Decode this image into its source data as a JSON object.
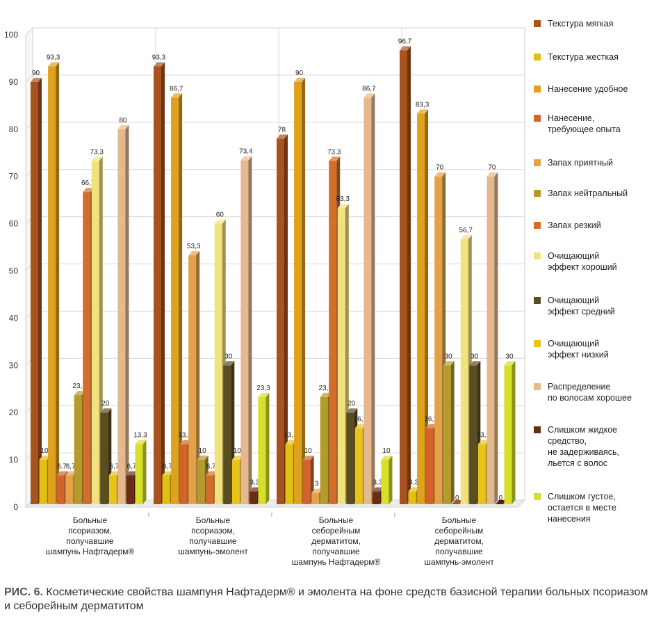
{
  "chart_data": {
    "type": "bar",
    "categories": [
      "Больные\nпсориазом,\nполучавшие\nшампунь Нафтадерм®",
      "Больные\nпсориазом,\nполучавшие\nшампунь-эмолент",
      "Больные\nсеборейным\nдерматитом,\nполучавшие\nшампунь Нафтадерм®",
      "Больные\nсеборейным\nдерматитом,\nполучавшие\nшампунь-эмолент"
    ],
    "series": [
      {
        "name": "Текстура мягкая",
        "color": "#a8521f",
        "values": [
          90,
          93.3,
          78,
          96.7
        ],
        "labels": [
          "90",
          "93,3",
          "78",
          "96,7"
        ]
      },
      {
        "name": "Текстура жесткая",
        "color": "#e3bf12",
        "values": [
          10,
          6.7,
          13.3,
          3.3
        ],
        "labels": [
          "10",
          "6,7",
          "13,3",
          "3,3"
        ]
      },
      {
        "name": "Нанесение удобное",
        "color": "#e0a21d",
        "values": [
          93.3,
          86.7,
          90,
          83.3
        ],
        "labels": [
          "93,3",
          "86,7",
          "90",
          "83,3"
        ]
      },
      {
        "name": "Нанесение,\nтребующее опыта",
        "color": "#d2632a",
        "values": [
          6.7,
          13.3,
          10,
          16.7
        ],
        "labels": [
          "6,7",
          "13,3",
          "10",
          "16,7"
        ]
      },
      {
        "name": "Запах приятный",
        "color": "#e4a248",
        "values": [
          6.7,
          53.3,
          3,
          70
        ],
        "labels": [
          "6,7",
          "53,3",
          "3",
          "70"
        ]
      },
      {
        "name": "Запах нейтральный",
        "color": "#b59a2c",
        "values": [
          23.7,
          10,
          23.3,
          30
        ],
        "labels": [
          "23,7",
          "10",
          "23,3",
          "30"
        ]
      },
      {
        "name": "Запах резкий",
        "color": "#d26e2a",
        "values": [
          66.7,
          6.7,
          73.3,
          0
        ],
        "labels": [
          "66,7",
          "6,7",
          "73,3",
          "0"
        ]
      },
      {
        "name": "Очищающий\nэффект хороший",
        "color": "#f2e27c",
        "values": [
          73.3,
          60,
          63.3,
          56.7
        ],
        "labels": [
          "73,3",
          "60",
          "63,3",
          "56,7"
        ]
      },
      {
        "name": "Очищающий\nэффект средний",
        "color": "#5a4d1f",
        "values": [
          20,
          30,
          20,
          30
        ],
        "labels": [
          "20",
          "30",
          "20",
          "30"
        ]
      },
      {
        "name": "Очищающий\nэффект низкий",
        "color": "#e9c31c",
        "values": [
          6.7,
          10,
          16.7,
          13.3
        ],
        "labels": [
          "6,7",
          "10",
          "16,7",
          "13,3"
        ]
      },
      {
        "name": "Распределение\nпо волосам хорошее",
        "color": "#e6b88e",
        "values": [
          80,
          73.4,
          86.7,
          70
        ],
        "labels": [
          "80",
          "73,4",
          "86,7",
          "70"
        ]
      },
      {
        "name": "Слишком жидкое\nсредство,\nне задерживаясь,\nльется с волос",
        "color": "#6a2c14",
        "values": [
          6.7,
          3.3,
          3.3,
          0
        ],
        "labels": [
          "6,7",
          "3,3",
          "3,3",
          "0"
        ]
      },
      {
        "name": "Слишком густое,\nостается в месте\nнанесения",
        "color": "#d6e02a",
        "values": [
          13.3,
          23.3,
          10,
          30
        ],
        "labels": [
          "13,3",
          "23,3",
          "10",
          "30"
        ]
      }
    ],
    "yticks": [
      "0",
      "10",
      "20",
      "30",
      "40",
      "50",
      "60",
      "70",
      "80",
      "90",
      "100"
    ],
    "ylim": [
      0,
      100
    ],
    "grid": true,
    "legend_position": "right"
  },
  "caption": {
    "label": "РИС. 6.",
    "text": " Косметические свойства шампуня Нафтадерм® и эмолента на фоне средств базисной терапии больных псориазом и себорейным дерматитом"
  }
}
